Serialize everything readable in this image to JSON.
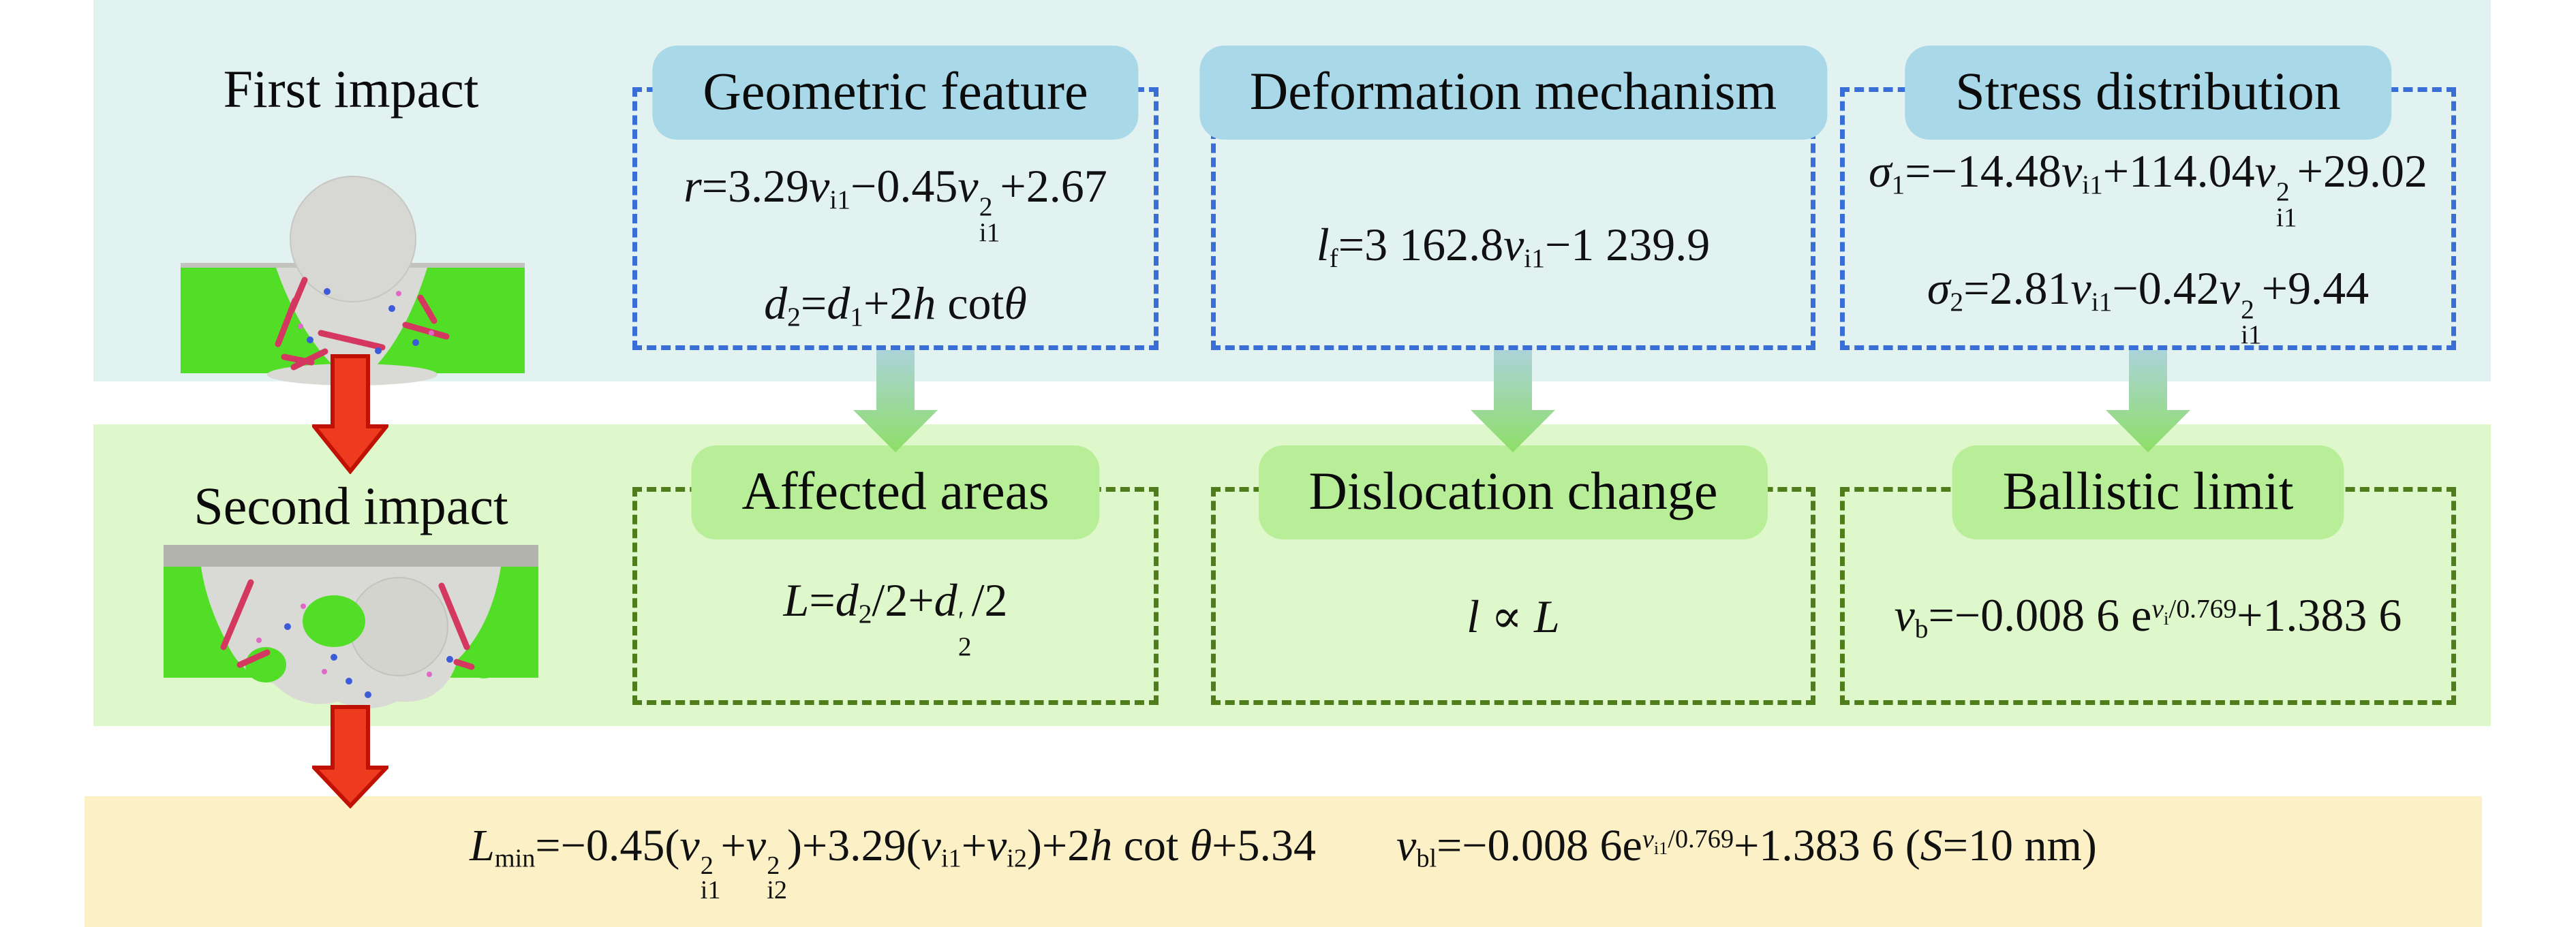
{
  "figure": {
    "stage1": {
      "label": "First impact",
      "boxes": [
        {
          "title": "Geometric feature",
          "formulas": [
            [
              {
                "s": "i",
                "x": "r"
              },
              {
                "x": "=3.29"
              },
              {
                "s": "i",
                "x": "v"
              },
              {
                "s": "sub",
                "x": "i1"
              },
              {
                "x": "−0.45"
              },
              {
                "s": "i",
                "x": "v"
              },
              {
                "stack": true,
                "sup": "2",
                "sub": "i1"
              },
              {
                "x": "+2.67"
              }
            ],
            [
              {
                "s": "i",
                "x": "d"
              },
              {
                "s": "sub",
                "x": "2"
              },
              {
                "x": "="
              },
              {
                "s": "i",
                "x": "d"
              },
              {
                "s": "sub",
                "x": "1"
              },
              {
                "x": "+2"
              },
              {
                "s": "i",
                "x": "h"
              },
              {
                "x": " cot"
              },
              {
                "s": "i",
                "x": "θ"
              }
            ]
          ]
        },
        {
          "title": "Deformation mechanism",
          "formulas": [
            [
              {
                "s": "i",
                "x": "l"
              },
              {
                "s": "sub",
                "x": "f"
              },
              {
                "x": "=3 162.8"
              },
              {
                "s": "i",
                "x": "v"
              },
              {
                "s": "sub",
                "x": "i1"
              },
              {
                "x": "−1 239.9"
              }
            ]
          ]
        },
        {
          "title": "Stress distribution",
          "formulas": [
            [
              {
                "s": "i",
                "x": "σ"
              },
              {
                "s": "sub",
                "x": "1"
              },
              {
                "x": "=−14.48"
              },
              {
                "s": "i",
                "x": "v"
              },
              {
                "s": "sub",
                "x": "i1"
              },
              {
                "x": "+114.04"
              },
              {
                "s": "i",
                "x": "v"
              },
              {
                "stack": true,
                "sup": "2",
                "sub": "i1"
              },
              {
                "x": "+29.02"
              }
            ],
            [
              {
                "s": "i",
                "x": "σ"
              },
              {
                "s": "sub",
                "x": "2"
              },
              {
                "x": "=2.81"
              },
              {
                "s": "i",
                "x": "v"
              },
              {
                "s": "sub",
                "x": "i1"
              },
              {
                "x": "−0.42"
              },
              {
                "s": "i",
                "x": "v"
              },
              {
                "stack": true,
                "sup": "2",
                "sub": "i1"
              },
              {
                "x": "+9.44"
              }
            ]
          ]
        }
      ]
    },
    "stage2": {
      "label": "Second impact",
      "boxes": [
        {
          "title": "Affected areas",
          "formulas": [
            [
              {
                "s": "i",
                "x": "L"
              },
              {
                "x": "="
              },
              {
                "s": "i",
                "x": "d"
              },
              {
                "s": "sub",
                "x": "2"
              },
              {
                "x": "/2+"
              },
              {
                "s": "i",
                "x": "d"
              },
              {
                "stack": true,
                "sup": "′",
                "sub": "2"
              },
              {
                "x": "/2"
              }
            ]
          ]
        },
        {
          "title": "Dislocation change",
          "formulas": [
            [
              {
                "s": "i",
                "x": "l"
              },
              {
                "x": " ∝ "
              },
              {
                "s": "i",
                "x": "L"
              }
            ]
          ]
        },
        {
          "title": "Ballistic limit",
          "formulas": [
            [
              {
                "s": "i",
                "x": "v"
              },
              {
                "s": "sub",
                "x": "b"
              },
              {
                "x": "=−0.008 6 e"
              },
              {
                "s": "sup i",
                "x": "v"
              },
              {
                "s": "ssub",
                "x": "i"
              },
              {
                "s": "sup",
                "x": "/0.769"
              },
              {
                "x": "+1.383 6"
              }
            ]
          ]
        }
      ]
    },
    "summary": {
      "formulas": [
        [
          {
            "s": "i",
            "x": "L"
          },
          {
            "s": "sub",
            "x": "min"
          },
          {
            "x": "=−0.45("
          },
          {
            "s": "i",
            "x": "v"
          },
          {
            "stack": true,
            "sup": "2",
            "sub": "i1"
          },
          {
            "x": "+"
          },
          {
            "s": "i",
            "x": "v"
          },
          {
            "stack": true,
            "sup": "2",
            "sub": "i2"
          },
          {
            "x": ")+3.29("
          },
          {
            "s": "i",
            "x": "v"
          },
          {
            "s": "sub",
            "x": "i1"
          },
          {
            "x": "+"
          },
          {
            "s": "i",
            "x": "v"
          },
          {
            "s": "sub",
            "x": "i2"
          },
          {
            "x": ")+2"
          },
          {
            "s": "i",
            "x": "h"
          },
          {
            "x": " cot "
          },
          {
            "s": "i",
            "x": "θ"
          },
          {
            "x": "+5.34"
          }
        ],
        [
          {
            "s": "i",
            "x": "v"
          },
          {
            "s": "sub",
            "x": "bl"
          },
          {
            "x": "=−0.008 6e"
          },
          {
            "s": "sup i",
            "x": "v"
          },
          {
            "s": "ssub",
            "x": "i1"
          },
          {
            "s": "sup",
            "x": "/0.769"
          },
          {
            "x": "+1.383 6 ("
          },
          {
            "s": "i",
            "x": "S"
          },
          {
            "x": "=10 nm)"
          }
        ]
      ]
    }
  },
  "colors": {
    "stage1_band": "#e1f2f1",
    "stage1_pill": "#a9d8e8",
    "stage1_border": "#3a6ed7",
    "stage2_band": "#dff8cb",
    "stage2_pill": "#b9ee98",
    "stage2_border": "#4f7d1b",
    "summary_band": "#fbf0c6",
    "flow_arrow_fill": "#ee3b20",
    "flow_arrow_stroke": "#bf1205",
    "map_arrow_top": "#abd3d9",
    "map_arrow_bottom": "#8ede68"
  }
}
